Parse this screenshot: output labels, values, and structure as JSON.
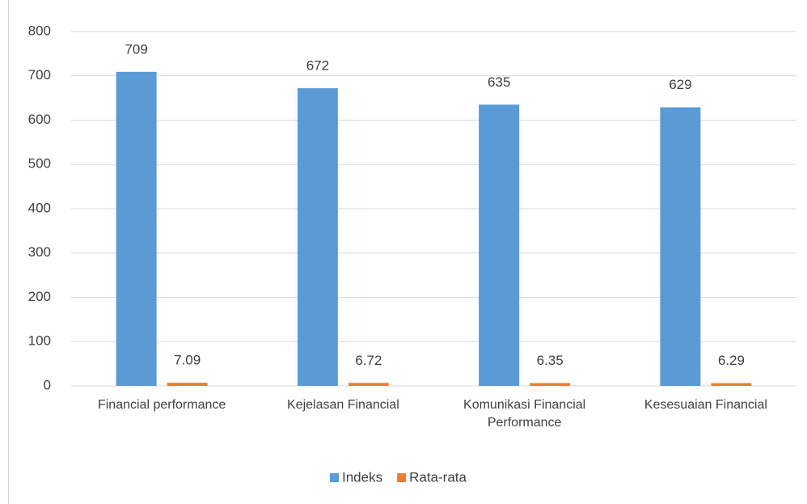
{
  "chart_data": {
    "type": "bar",
    "categories": [
      "Financial performance",
      "Kejelasan Financial",
      "Komunikasi Financial Performance",
      "Kesesuaian Financial"
    ],
    "series": [
      {
        "name": "Indeks",
        "color": "#5b9bd5",
        "values": [
          709,
          672,
          635,
          629
        ]
      },
      {
        "name": "Rata-rata",
        "color": "#ed7d31",
        "values": [
          7.09,
          6.72,
          6.35,
          6.29
        ]
      }
    ],
    "ylim": [
      0,
      800
    ],
    "yticks": [
      0,
      100,
      200,
      300,
      400,
      500,
      600,
      700,
      800
    ],
    "grid": true,
    "legend": "bottom"
  }
}
